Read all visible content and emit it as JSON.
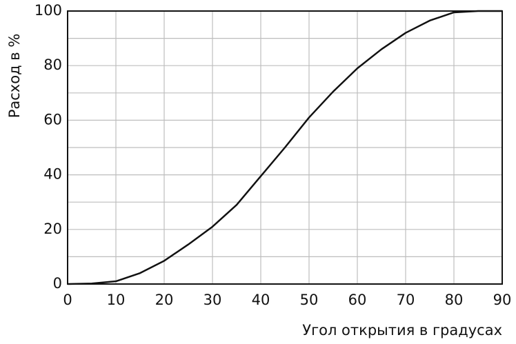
{
  "chart_data": {
    "type": "line",
    "y_label": "Расход в %",
    "x_label": "Угол открытия в градусах",
    "x": [
      0,
      5,
      10,
      15,
      20,
      25,
      30,
      35,
      40,
      45,
      50,
      55,
      60,
      65,
      70,
      75,
      80,
      85,
      90
    ],
    "series": [
      {
        "color": "#111111",
        "values": [
          0,
          0.2,
          1,
          4,
          8.5,
          14.5,
          21,
          29,
          39.5,
          50,
          61,
          70.5,
          79,
          86,
          92,
          96.5,
          99.5,
          100,
          100
        ]
      }
    ],
    "xlim": [
      0,
      90
    ],
    "xticks": [
      0,
      10,
      20,
      30,
      40,
      50,
      60,
      70,
      80,
      90
    ],
    "ylim": [
      0,
      100
    ],
    "yticks": [
      0,
      20,
      40,
      60,
      80,
      100
    ],
    "yminorticks": [
      10,
      30,
      50,
      70,
      90
    ],
    "grid": true
  }
}
